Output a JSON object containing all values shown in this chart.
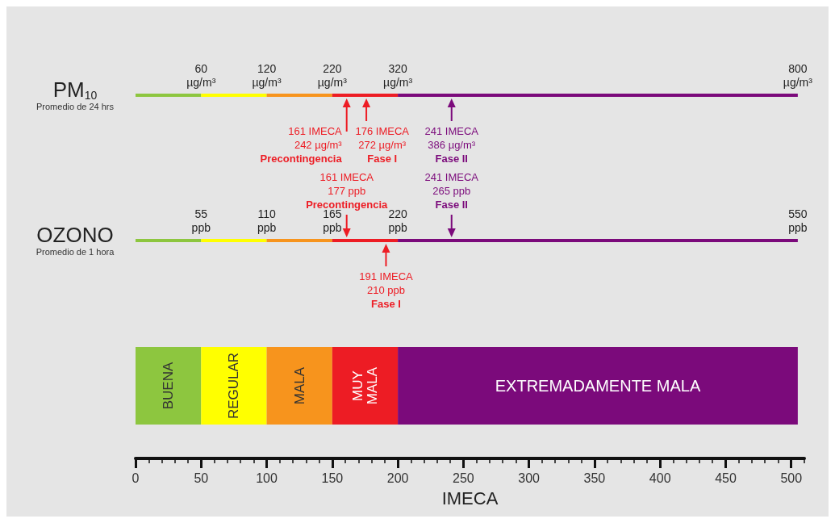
{
  "chart_data": {
    "type": "bar",
    "orientation": "horizontal",
    "stacked": true,
    "categories": [
      "PM$_{10}$\nPromedio de 24 hrs",
      "OZONO\nPromedio de 1 hora",
      null
    ],
    "series": [
      {
        "name": "BUENA",
        "color": "#8dc63f",
        "values": [
          50,
          50,
          50
        ]
      },
      {
        "name": "REGULAR",
        "color": "#ffff00",
        "values": [
          50,
          50,
          50
        ]
      },
      {
        "name": "MALA",
        "color": "#f7941d",
        "values": [
          50,
          50,
          50
        ]
      },
      {
        "name": "MUY MALA",
        "color": "#ed1c24",
        "values": [
          50,
          50,
          50
        ]
      },
      {
        "name": "EXTREMADAMENTE MALA",
        "color": "#7b0a7b",
        "values": [
          305,
          305,
          305
        ]
      }
    ],
    "xlim": [
      0,
      510
    ],
    "xticks": [
      0,
      50,
      100,
      150,
      200,
      250,
      300,
      350,
      400,
      450,
      500
    ],
    "xlabel": "IMECA",
    "annotations": [
      {
        "text": "60\nµg/m³",
        "x": 50,
        "y": "PM$_{10}$\nPromedio de 24 hrs"
      },
      {
        "text": "120\nµg/m³",
        "x": 100,
        "y": "PM$_{10}$\nPromedio de 24 hrs"
      },
      {
        "text": "220\nµg/m³",
        "x": 150,
        "y": "PM$_{10}$\nPromedio de 24 hrs"
      },
      {
        "text": "320\nµg/m³",
        "x": 200,
        "y": "PM$_{10}$\nPromedio de 24 hrs"
      },
      {
        "text": "800\nµg/m³",
        "x": 505,
        "y": "PM$_{10}$\nPromedio de 24 hrs"
      },
      {
        "text": "161 IMECA\n242 µg/m³\nPrecontingencia",
        "x": 161,
        "y": "PM$_{10}$\nPromedio de 24 hrs"
      },
      {
        "text": "176 IMECA\n272 µg/m³\nFase I",
        "x": 176,
        "y": "PM$_{10}$\nPromedio de 24 hrs"
      },
      {
        "text": "241 IMECA\n386 µg/m³\nFase II",
        "x": 241,
        "y": "PM$_{10}$\nPromedio de 24 hrs"
      },
      {
        "text": "55\nppb",
        "x": 50,
        "y": "OZONO\nPromedio de 1 hora"
      },
      {
        "text": "110\nppb",
        "x": 100,
        "y": "OZONO\nPromedio de 1 hora"
      },
      {
        "text": "165\nppb",
        "x": 150,
        "y": "OZONO\nPromedio de 1 hora"
      },
      {
        "text": "220\nppb",
        "x": 200,
        "y": "OZONO\nPromedio de 1 hora"
      },
      {
        "text": "550\nppb",
        "x": 505,
        "y": "OZONO\nPromedio de 1 hora"
      },
      {
        "text": "161 IMECA\n177 ppb\nPrecontingencia",
        "x": 161,
        "y": "OZONO\nPromedio de 1 hora"
      },
      {
        "text": "191 IMECA\n210 ppb\nFase I",
        "x": 191,
        "y": "OZONO\nPromedio de 1 hora"
      },
      {
        "text": "241 IMECA\n265 ppb\nFase II",
        "x": 241,
        "y": "OZONO\nPromedio de 1 hora"
      }
    ]
  }
}
